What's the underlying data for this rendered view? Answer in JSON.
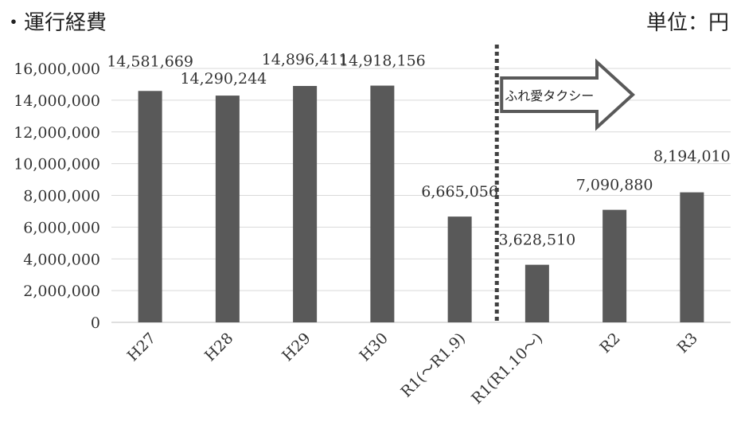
{
  "header": {
    "title": "・運行経費",
    "unit": "単位：円"
  },
  "annotation": {
    "text": "ふれ愛タクシー"
  },
  "chart_data": {
    "type": "bar",
    "categories": [
      "H27",
      "H28",
      "H29",
      "H30",
      "R1(～R1.9)",
      "R1(R1.10～)",
      "R2",
      "R3"
    ],
    "values": [
      14581669,
      14290244,
      14896411,
      14918156,
      6665056,
      3628510,
      7090880,
      8194010
    ],
    "data_labels": [
      "14,581,669",
      "14,290,244",
      "14,896,411",
      "14,918,156",
      "6,665,056",
      "3,628,510",
      "7,090,880",
      "8,194,010"
    ],
    "ylim": [
      0,
      16000000
    ],
    "yticks": [
      0,
      2000000,
      4000000,
      6000000,
      8000000,
      10000000,
      12000000,
      14000000,
      16000000
    ],
    "ytick_labels": [
      "0",
      "2,000,000",
      "4,000,000",
      "6,000,000",
      "8,000,000",
      "10,000,000",
      "12,000,000",
      "14,000,000",
      "16,000,000"
    ],
    "grid": true,
    "bar_color": "#595959",
    "divider_between": [
      4,
      5
    ]
  }
}
